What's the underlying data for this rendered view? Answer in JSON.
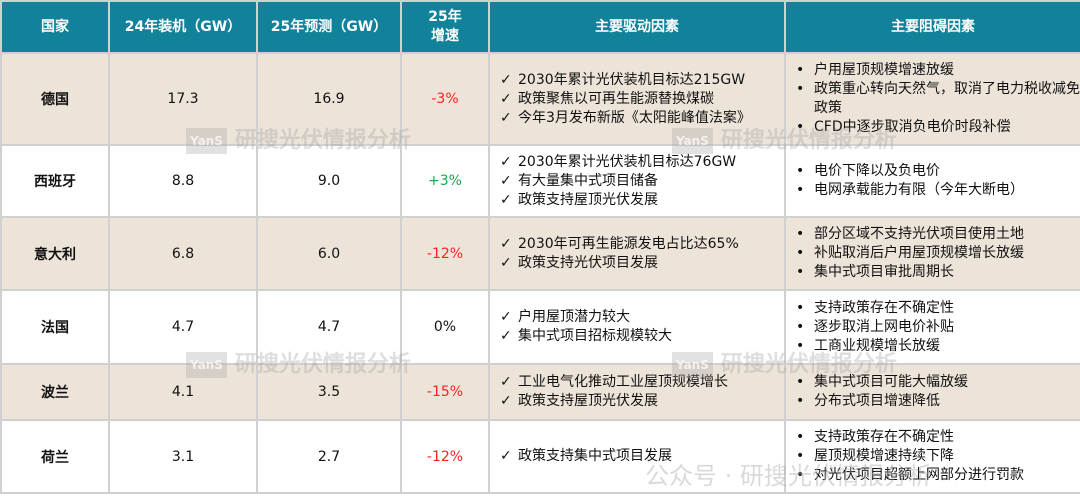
{
  "headers": [
    "国家",
    "24年装机（GW）",
    "25年预测（GW）",
    "25年\n增速",
    "主要驱动因素",
    "主要阻碍因素"
  ],
  "rows": [
    {
      "country": "德国",
      "y24": "17.3",
      "y25": "16.9",
      "growth": "-3%",
      "trend": "neg",
      "shade": true,
      "drivers": [
        "2030年累计光伏装机目标达215GW",
        "政策聚焦以可再生能源替换煤碳",
        "今年3月发布新版《太阳能峰值法案》"
      ],
      "barriers": [
        "户用屋顶规模增速放缓",
        "政策重心转向天然气，取消了电力税收减免政策",
        "CFD中逐步取消负电价时段补偿"
      ]
    },
    {
      "country": "西班牙",
      "y24": "8.8",
      "y25": "9.0",
      "growth": "+3%",
      "trend": "pos",
      "shade": false,
      "drivers": [
        "2030年累计光伏装机目标达76GW",
        "有大量集中式项目储备",
        "政策支持屋顶光伏发展"
      ],
      "barriers": [
        "电价下降以及负电价",
        "电网承载能力有限（今年大断电）"
      ]
    },
    {
      "country": "意大利",
      "y24": "6.8",
      "y25": "6.0",
      "growth": "-12%",
      "trend": "neg",
      "shade": true,
      "drivers": [
        "2030年可再生能源发电占比达65%",
        "政策支持光伏项目发展"
      ],
      "barriers": [
        "部分区域不支持光伏项目使用土地",
        "补贴取消后户用屋顶规模增长放缓",
        "集中式项目审批周期长"
      ]
    },
    {
      "country": "法国",
      "y24": "4.7",
      "y25": "4.7",
      "growth": "0%",
      "trend": "flat",
      "shade": false,
      "drivers": [
        "户用屋顶潜力较大",
        "集中式项目招标规模较大"
      ],
      "barriers": [
        "支持政策存在不确定性",
        "逐步取消上网电价补贴",
        "工商业规模增长放缓"
      ]
    },
    {
      "country": "波兰",
      "y24": "4.1",
      "y25": "3.5",
      "growth": "-15%",
      "trend": "neg",
      "shade": true,
      "drivers": [
        "工业电气化推动工业屋顶规模增长",
        "政策支持屋顶光伏发展"
      ],
      "barriers": [
        "集中式项目可能大幅放缓",
        "分布式项目增速降低"
      ]
    },
    {
      "country": "荷兰",
      "y24": "3.1",
      "y25": "2.7",
      "growth": "-12%",
      "trend": "neg",
      "shade": false,
      "drivers": [
        "政策支持集中式项目发展"
      ],
      "barriers": [
        "支持政策存在不确定性",
        "屋顶规模增速持续下降",
        "对光伏项目超额上网部分进行罚款"
      ]
    }
  ],
  "marks": {
    "check": "✓",
    "bullet": "•"
  },
  "colors": {
    "header": "#12829b",
    "shade": "#ede4d9",
    "negative": "#ff2020",
    "positive": "#18a84a"
  },
  "watermark": {
    "logo": "YanS",
    "text": "研搜光伏情报分析",
    "wechat": "公众号 · 研搜光伏情报分析"
  }
}
